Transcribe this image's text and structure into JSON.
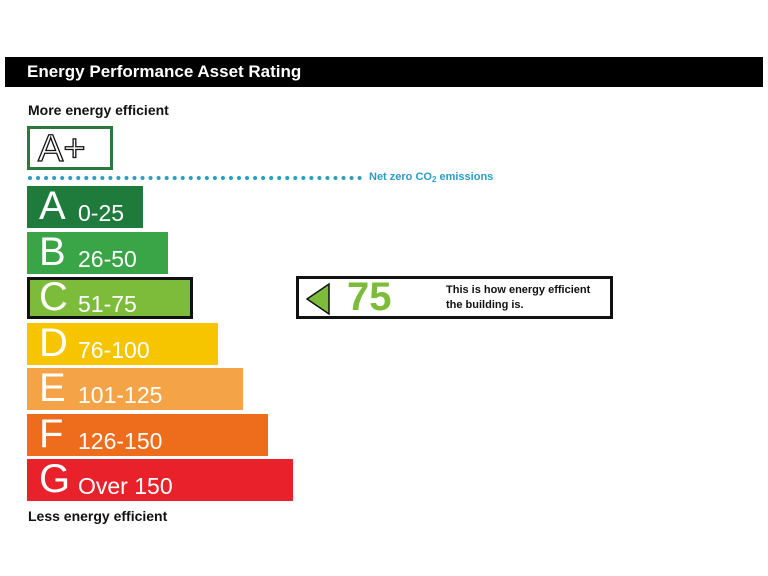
{
  "header": {
    "title": "Energy Performance Asset Rating"
  },
  "labels": {
    "top": "More energy efficient",
    "bottom": "Less energy efficient"
  },
  "aplus": {
    "label": "A+"
  },
  "net_zero": {
    "text": "Net zero CO",
    "subscript": "2",
    "suffix": " emissions",
    "color": "#2c9cc7"
  },
  "indicator": {
    "score": "75",
    "description": "This is how energy efficient the building is.",
    "color": "#7cbc3a"
  },
  "chart_data": {
    "type": "bar",
    "title": "Energy Performance Asset Rating",
    "xlabel": "",
    "ylabel": "",
    "categories": [
      "A",
      "B",
      "C",
      "D",
      "E",
      "F",
      "G"
    ],
    "ranges": [
      "0-25",
      "26-50",
      "51-75",
      "76-100",
      "101-125",
      "126-150",
      "Over 150"
    ],
    "values": [
      1,
      2,
      3,
      4,
      5,
      6,
      7
    ],
    "colors": [
      "#1e7b3c",
      "#3aa547",
      "#7cbc3a",
      "#f6c500",
      "#f4a446",
      "#ee6d1c",
      "#e8212a"
    ],
    "selected_band": "C",
    "rating_value": 75
  }
}
